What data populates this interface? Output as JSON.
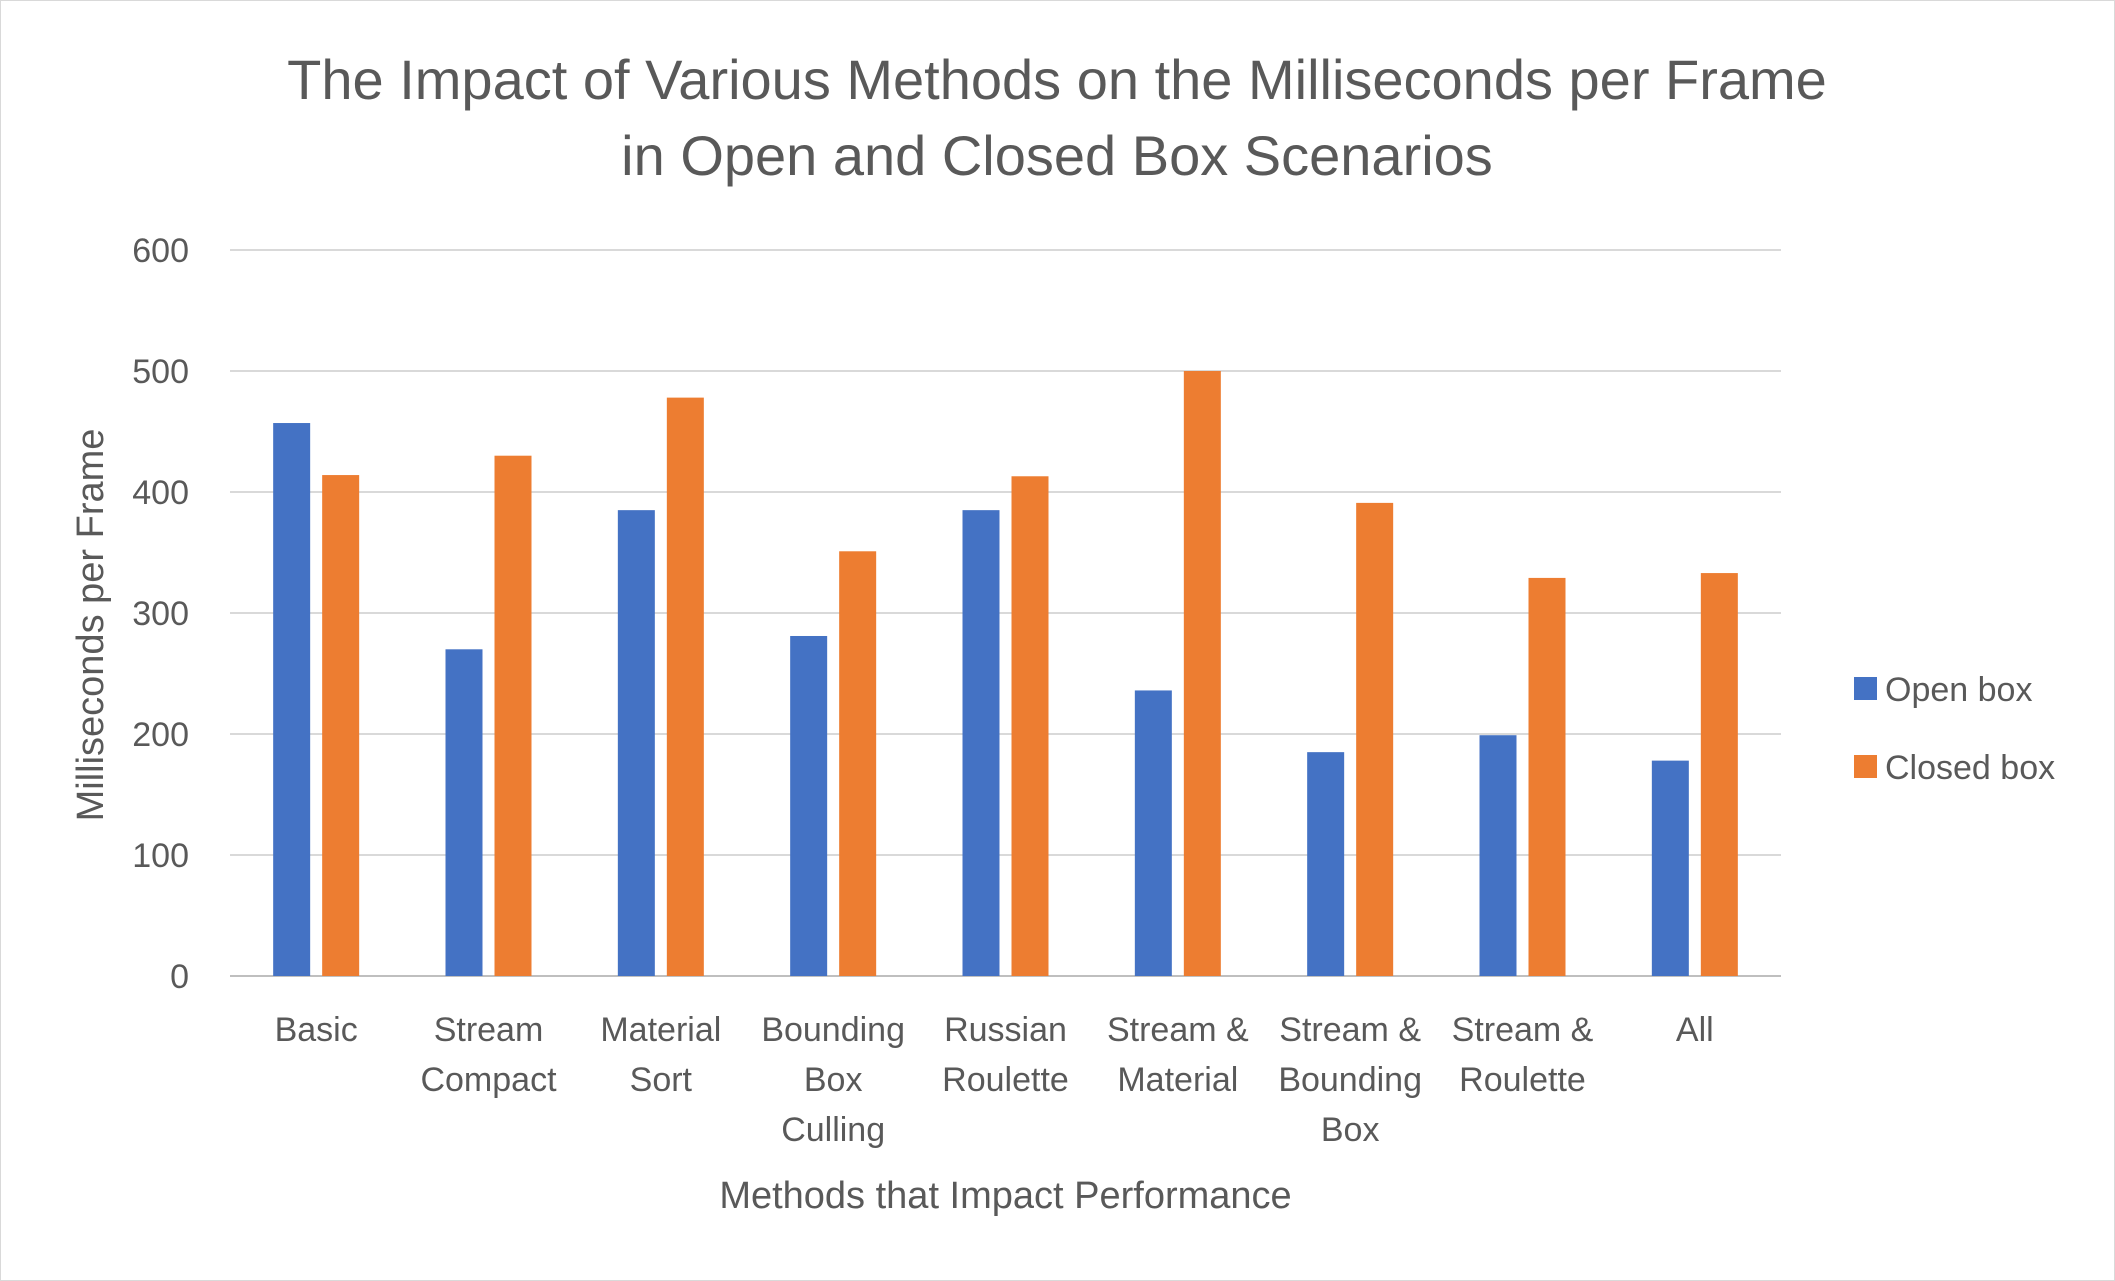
{
  "chart_data": {
    "type": "bar",
    "title": [
      "The Impact of Various Methods on the Milliseconds per Frame",
      "in Open and Closed Box Scenarios"
    ],
    "xlabel": "Methods that Impact Performance",
    "ylabel": "Milliseconds per Frame",
    "ylim": [
      0,
      600
    ],
    "yticks": [
      0,
      100,
      200,
      300,
      400,
      500,
      600
    ],
    "grid": true,
    "legend_position": "right",
    "categories": [
      [
        "Basic"
      ],
      [
        "Stream",
        "Compact"
      ],
      [
        "Material",
        "Sort"
      ],
      [
        "Bounding",
        "Box",
        "Culling"
      ],
      [
        "Russian",
        "Roulette"
      ],
      [
        "Stream &",
        "Material"
      ],
      [
        "Stream &",
        "Bounding",
        "Box"
      ],
      [
        "Stream &",
        "Roulette"
      ],
      [
        "All"
      ]
    ],
    "series": [
      {
        "name": "Open box",
        "color": "#4472c4",
        "values": [
          457,
          270,
          385,
          281,
          385,
          236,
          185,
          199,
          178
        ]
      },
      {
        "name": "Closed box",
        "color": "#ed7d31",
        "values": [
          414,
          430,
          478,
          351,
          413,
          500,
          391,
          329,
          333
        ]
      }
    ]
  }
}
